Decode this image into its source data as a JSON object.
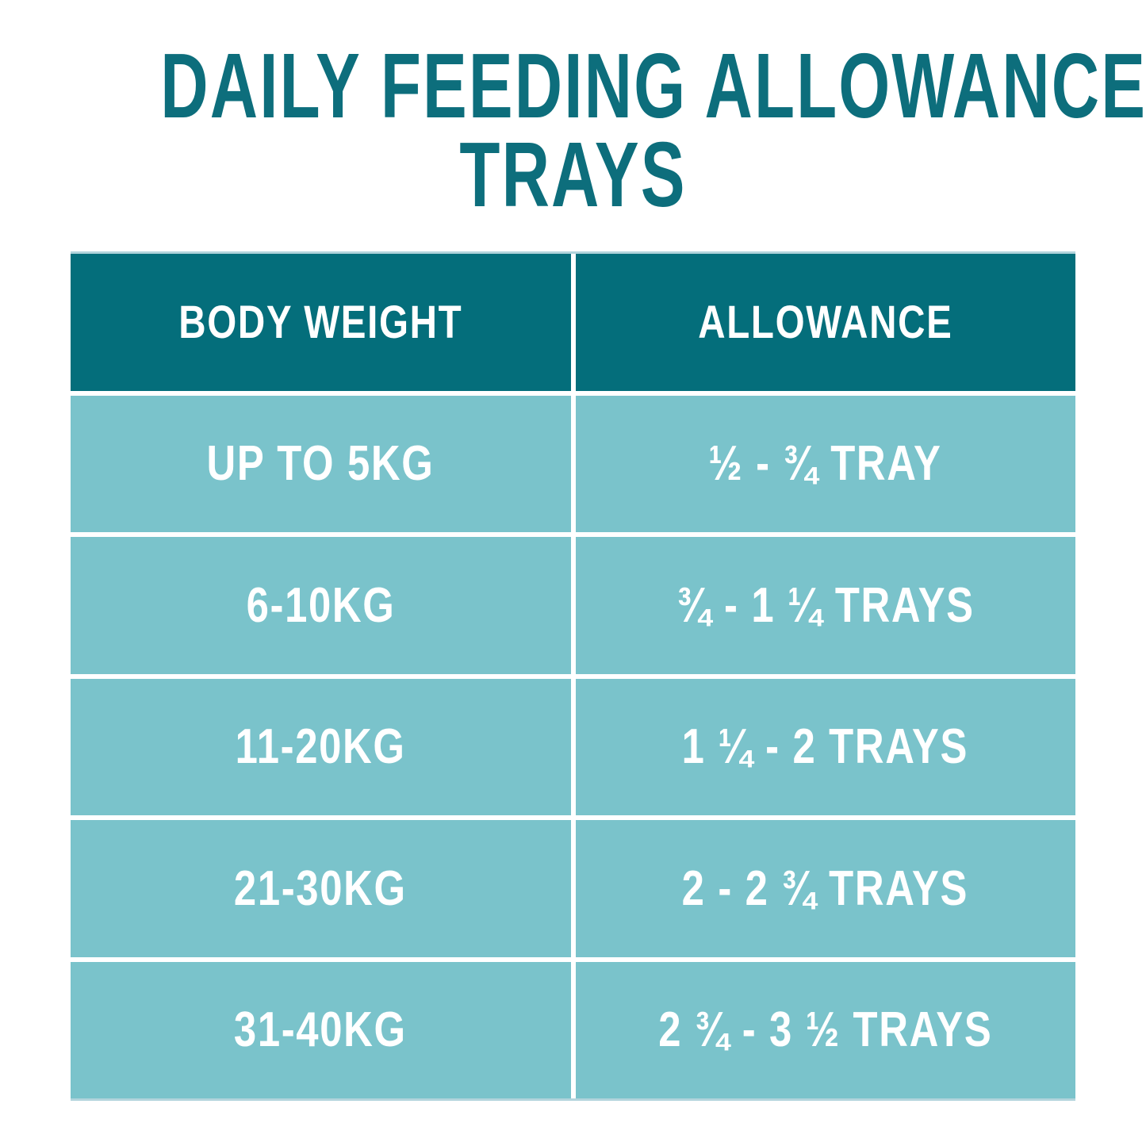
{
  "title": {
    "line1": "DAILY FEEDING ALLOWANCE",
    "line2": "TRAYS"
  },
  "table": {
    "header": {
      "col1": "BODY WEIGHT",
      "col2": "ALLOWANCE"
    },
    "rows": [
      {
        "weight": "UP TO 5KG",
        "allowance": "½ - ¾ TRAY"
      },
      {
        "weight": "6-10KG",
        "allowance": "¾ - 1 ¼ TRAYS"
      },
      {
        "weight": "11-20KG",
        "allowance": "1 ¼ - 2 TRAYS"
      },
      {
        "weight": "21-30KG",
        "allowance": "2 - 2 ¾ TRAYS"
      },
      {
        "weight": "31-40KG",
        "allowance": "2 ¾ - 3 ½ TRAYS"
      }
    ]
  },
  "chart_data": {
    "type": "table",
    "title": "DAILY FEEDING ALLOWANCE TRAYS",
    "columns": [
      "BODY WEIGHT",
      "ALLOWANCE"
    ],
    "rows": [
      [
        "UP TO 5KG",
        "½ - ¾ TRAY"
      ],
      [
        "6-10KG",
        "¾ - 1 ¼ TRAYS"
      ],
      [
        "11-20KG",
        "1 ¼ - 2 TRAYS"
      ],
      [
        "21-30KG",
        "2 - 2 ¾ TRAYS"
      ],
      [
        "31-40KG",
        "2 ¾ - 3 ½ TRAYS"
      ]
    ]
  },
  "colors": {
    "title_text": "#0d6e7c",
    "header_bg": "#046e7b",
    "row_bg": "#7ac3cb",
    "cell_text": "#ffffff",
    "background": "#ffffff",
    "table_edge": "#b2d4dc"
  }
}
